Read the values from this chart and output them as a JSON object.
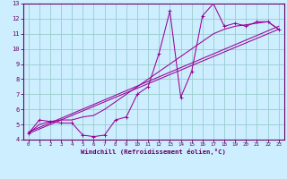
{
  "xlabel": "Windchill (Refroidissement éolien,°C)",
  "bg_color": "#cceeff",
  "grid_color": "#99cccc",
  "line_color": "#990099",
  "axis_color": "#660066",
  "text_color": "#660066",
  "xlim": [
    -0.5,
    23.5
  ],
  "ylim": [
    4,
    13
  ],
  "xticks": [
    0,
    1,
    2,
    3,
    4,
    5,
    6,
    7,
    8,
    9,
    10,
    11,
    12,
    13,
    14,
    15,
    16,
    17,
    18,
    19,
    20,
    21,
    22,
    23
  ],
  "yticks": [
    4,
    5,
    6,
    7,
    8,
    9,
    10,
    11,
    12,
    13
  ],
  "zigzag_x": [
    0,
    1,
    2,
    3,
    4,
    5,
    6,
    7,
    8,
    9,
    10,
    11,
    12,
    13,
    14,
    15,
    16,
    17,
    18,
    19,
    20,
    21,
    22,
    23
  ],
  "zigzag_y": [
    4.4,
    5.3,
    5.2,
    5.1,
    5.1,
    4.3,
    4.2,
    4.3,
    5.3,
    5.5,
    7.0,
    7.5,
    9.7,
    12.5,
    6.8,
    8.5,
    12.2,
    13.0,
    11.5,
    11.7,
    11.5,
    11.8,
    11.8,
    11.3
  ],
  "curve1_x": [
    0,
    1,
    2,
    3,
    4,
    5,
    6,
    7,
    8,
    9,
    10,
    11,
    12,
    13,
    14,
    15,
    16,
    17,
    18,
    19,
    20,
    21,
    22,
    23
  ],
  "curve1_y": [
    4.4,
    5.0,
    5.2,
    5.3,
    5.3,
    5.5,
    5.6,
    6.0,
    6.5,
    7.0,
    7.5,
    8.0,
    8.5,
    9.0,
    9.5,
    10.0,
    10.5,
    11.0,
    11.3,
    11.5,
    11.6,
    11.7,
    11.8,
    11.3
  ],
  "line1_x": [
    0,
    23
  ],
  "line1_y": [
    4.4,
    11.3
  ],
  "line2_x": [
    0,
    23
  ],
  "line2_y": [
    4.5,
    11.5
  ]
}
